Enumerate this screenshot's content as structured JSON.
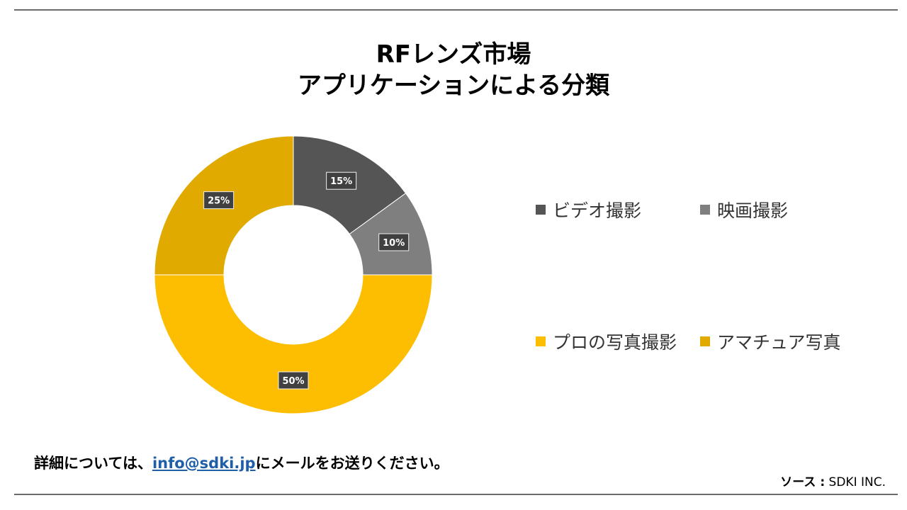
{
  "page": {
    "title_line1": "RFレンズ市場",
    "title_line2": "アプリケーションによる分類"
  },
  "chart_data": {
    "type": "pie",
    "title": "RFレンズ市場 アプリケーションによる分類",
    "donut": true,
    "legend_position": "right",
    "series": [
      {
        "name": "ビデオ撮影",
        "value": 15,
        "label": "15%",
        "color": "#555555"
      },
      {
        "name": "映画撮影",
        "value": 10,
        "label": "10%",
        "color": "#7f7f7f"
      },
      {
        "name": "プロの写真撮影",
        "value": 50,
        "label": "50%",
        "color": "#fdbd00"
      },
      {
        "name": "アマチュア写真",
        "value": 25,
        "label": "25%",
        "color": "#e0aa00"
      }
    ]
  },
  "footer": {
    "note_prefix": "詳細については、",
    "email": "info@sdki.jp",
    "note_suffix": "にメールをお送りください。",
    "source_label": "ソース  :",
    "source_value": "SDKI INC."
  }
}
